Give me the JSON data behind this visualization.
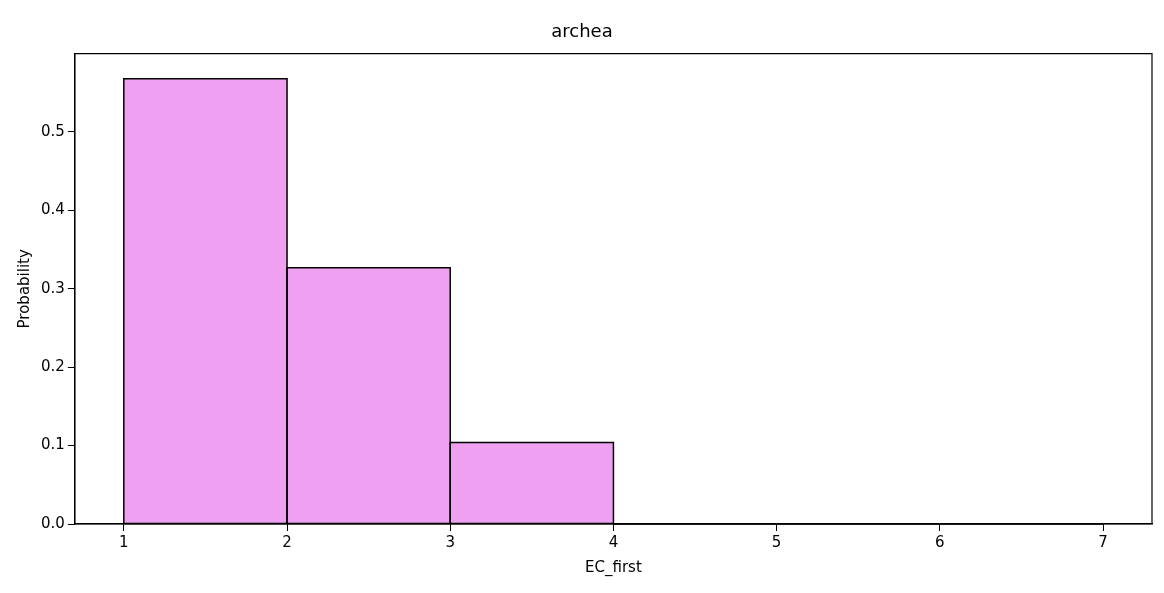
{
  "chart_data": {
    "type": "histogram",
    "title": "archea",
    "xlabel": "EC_first",
    "ylabel": "Probability",
    "bins": [
      1,
      2,
      3,
      4,
      5,
      6,
      7
    ],
    "values": [
      0.568,
      0.327,
      0.104,
      0,
      0,
      0
    ],
    "color": "#f0a0f0",
    "xlim": [
      0.7,
      7.3
    ],
    "xticks": [
      1,
      2,
      3,
      4,
      5,
      6,
      7
    ],
    "ylim": [
      0,
      0.6
    ],
    "yticks": [
      {
        "value": 0,
        "label": "0.0"
      },
      0.1,
      0.2,
      0.3,
      0.4,
      0.5
    ],
    "grid": false,
    "legend": false
  }
}
